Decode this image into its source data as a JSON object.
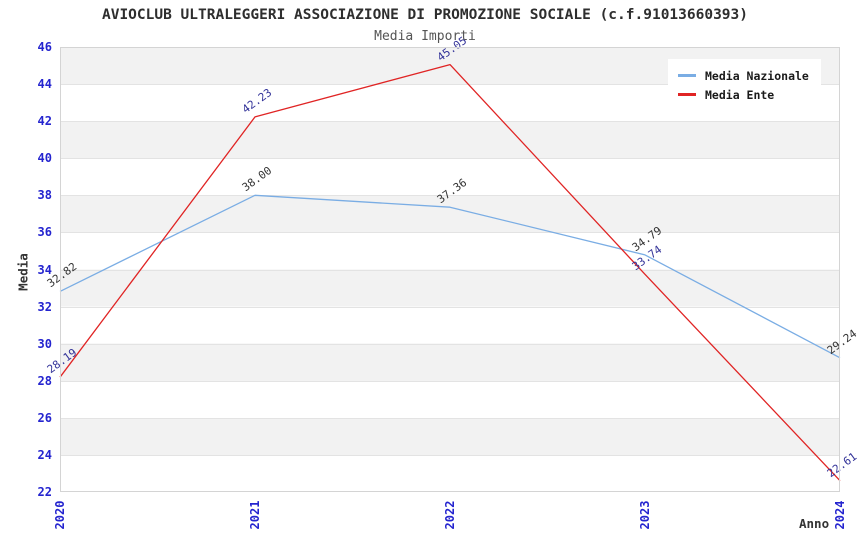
{
  "title": "AVIOCLUB ULTRALEGGERI ASSOCIAZIONE DI PROMOZIONE SOCIALE (c.f.91013660393)",
  "subtitle": "Media Importi",
  "chart_data": {
    "type": "line",
    "x": [
      "2020",
      "2021",
      "2022",
      "2023",
      "2024"
    ],
    "xlabel": "Anno",
    "ylabel": "Media",
    "ylim": [
      22,
      46
    ],
    "ytick_step": 2,
    "grid": true,
    "plot_bands": "alternating light-gray/white horizontal bands, 2 units tall",
    "legend_position": "top-right-inside",
    "axis_tick_color": "#2424cf",
    "series": [
      {
        "name": "Media Nazionale",
        "color": "#7aade4",
        "label_color": "#333333",
        "values": [
          32.82,
          38.0,
          37.36,
          34.79,
          29.24
        ],
        "point_labels": [
          "32.82",
          "38.00",
          "37.36",
          "34.79",
          "29.24"
        ]
      },
      {
        "name": "Media Ente",
        "color": "#e02424",
        "label_color": "#333399",
        "values": [
          28.19,
          42.23,
          45.05,
          33.74,
          22.61
        ],
        "point_labels": [
          "28.19",
          "42.23",
          "45.05",
          "33.74",
          "22.61"
        ]
      }
    ]
  }
}
